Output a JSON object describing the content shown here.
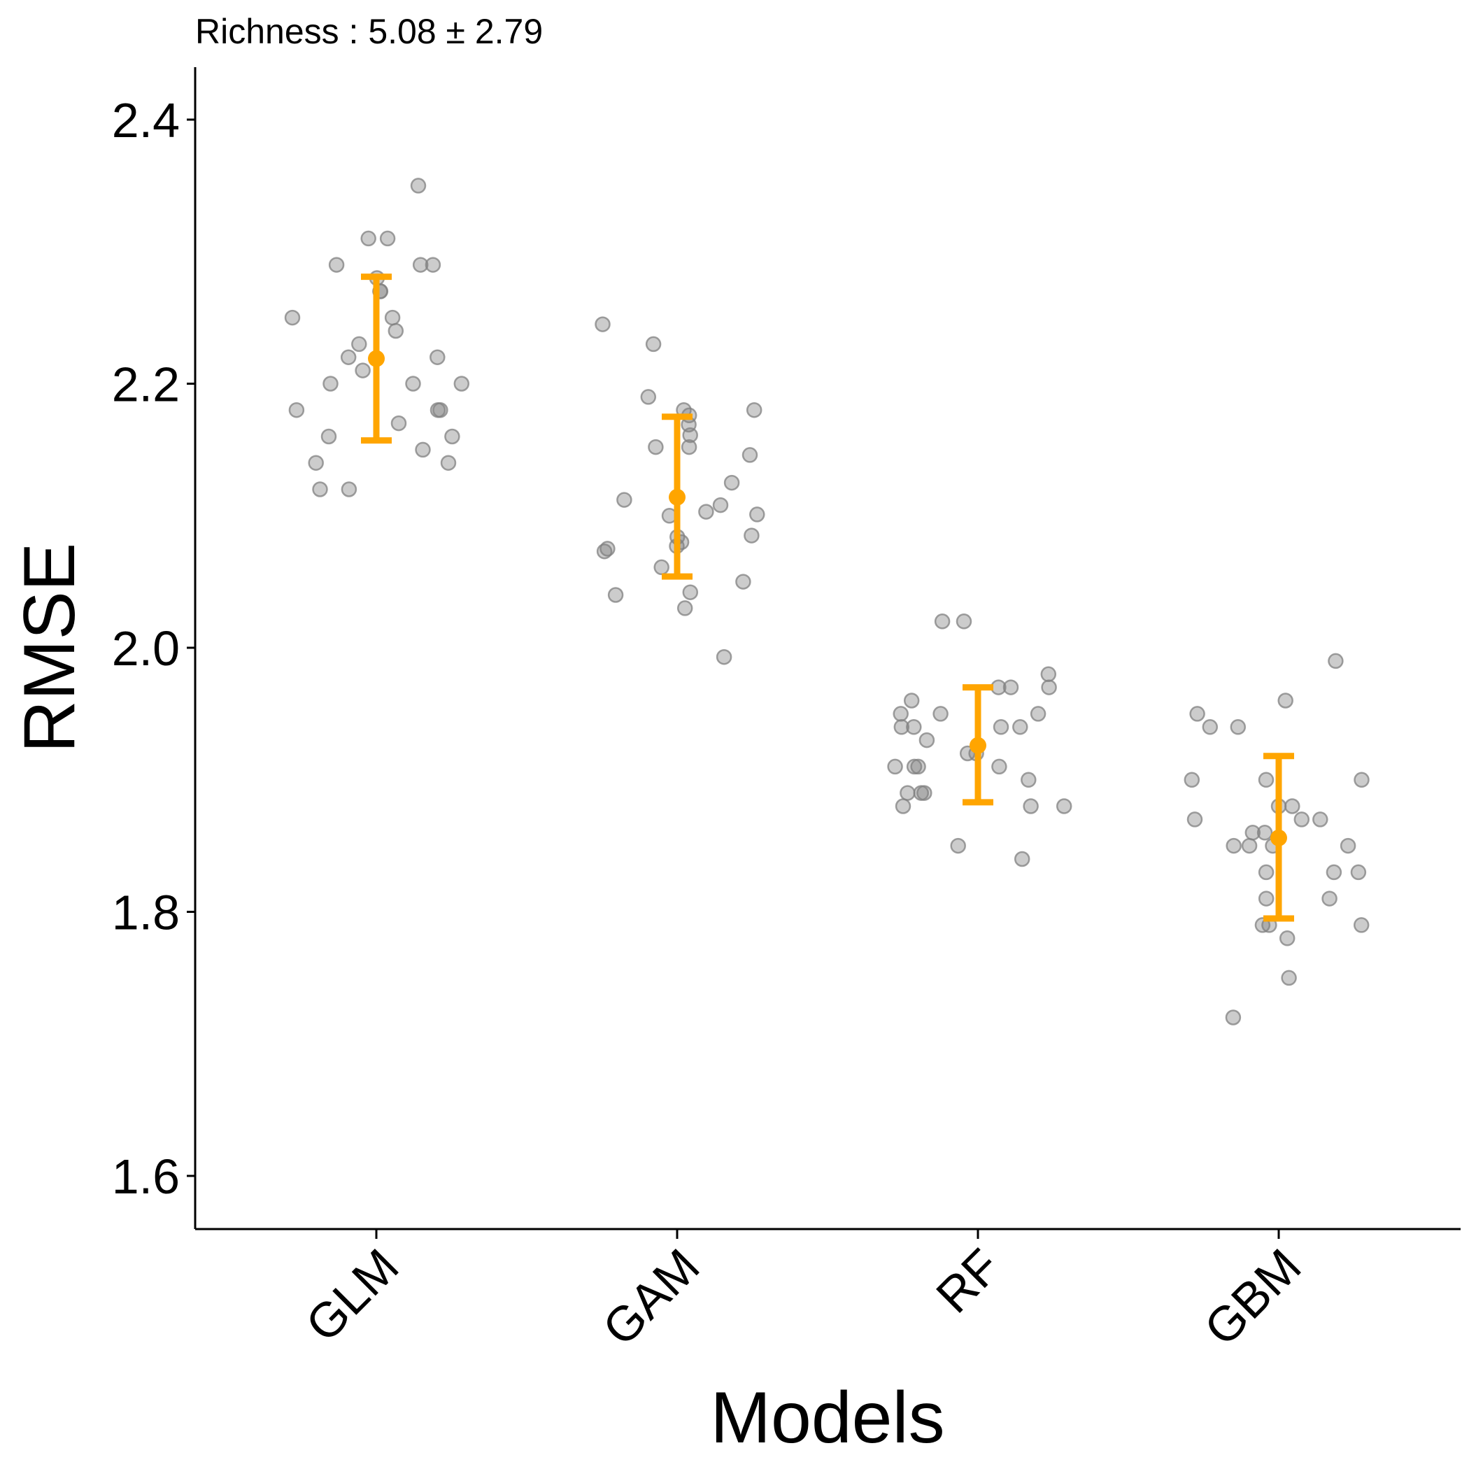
{
  "chart_data": {
    "type": "scatter",
    "subtitle": "Richness : 5.08 ± 2.79",
    "xlabel": "Models",
    "ylabel": "RMSE",
    "categories": [
      "GLM",
      "GAM",
      "RF",
      "GBM"
    ],
    "ylim": [
      1.56,
      2.444
    ],
    "yticks": [
      1.6,
      1.8,
      2.0,
      2.2,
      2.4
    ],
    "ytick_labels": [
      "1.6",
      "1.8",
      "2.0",
      "2.2",
      "2.4"
    ],
    "grid": false,
    "colors": {
      "points": "#808080",
      "summary": "#FFA500",
      "axis": "#000000"
    },
    "points": [
      {
        "category": "GLM",
        "values": [
          2.35,
          2.31,
          2.31,
          2.29,
          2.29,
          2.29,
          2.28,
          2.27,
          2.27,
          2.25,
          2.25,
          2.24,
          2.23,
          2.22,
          2.22,
          2.21,
          2.2,
          2.2,
          2.2,
          2.18,
          2.18,
          2.18,
          2.17,
          2.16,
          2.16,
          2.15,
          2.14,
          2.14,
          2.12,
          2.12
        ]
      },
      {
        "category": "GAM",
        "values": [
          2.245,
          2.23,
          2.19,
          2.18,
          2.18,
          2.176,
          2.169,
          2.161,
          2.152,
          2.152,
          2.146,
          2.125,
          2.112,
          2.108,
          2.103,
          2.101,
          2.1,
          2.085,
          2.084,
          2.08,
          2.077,
          2.075,
          2.073,
          2.061,
          2.05,
          2.042,
          2.04,
          2.03,
          1.993
        ]
      },
      {
        "category": "RF",
        "values": [
          2.02,
          2.02,
          1.98,
          1.97,
          1.97,
          1.97,
          1.96,
          1.95,
          1.95,
          1.95,
          1.94,
          1.94,
          1.94,
          1.94,
          1.93,
          1.92,
          1.92,
          1.91,
          1.91,
          1.91,
          1.91,
          1.9,
          1.89,
          1.89,
          1.89,
          1.88,
          1.88,
          1.88,
          1.85,
          1.84
        ]
      },
      {
        "category": "GBM",
        "values": [
          1.99,
          1.96,
          1.95,
          1.94,
          1.94,
          1.9,
          1.9,
          1.9,
          1.88,
          1.88,
          1.87,
          1.87,
          1.87,
          1.86,
          1.86,
          1.85,
          1.85,
          1.85,
          1.85,
          1.83,
          1.83,
          1.83,
          1.81,
          1.81,
          1.79,
          1.79,
          1.79,
          1.78,
          1.75,
          1.72
        ]
      }
    ],
    "summary": [
      {
        "category": "GLM",
        "mean": 2.219,
        "lower": 2.157,
        "upper": 2.281
      },
      {
        "category": "GAM",
        "mean": 2.114,
        "lower": 2.054,
        "upper": 2.175
      },
      {
        "category": "RF",
        "mean": 1.926,
        "lower": 1.883,
        "upper": 1.97
      },
      {
        "category": "GBM",
        "mean": 1.856,
        "lower": 1.795,
        "upper": 1.918
      }
    ]
  }
}
